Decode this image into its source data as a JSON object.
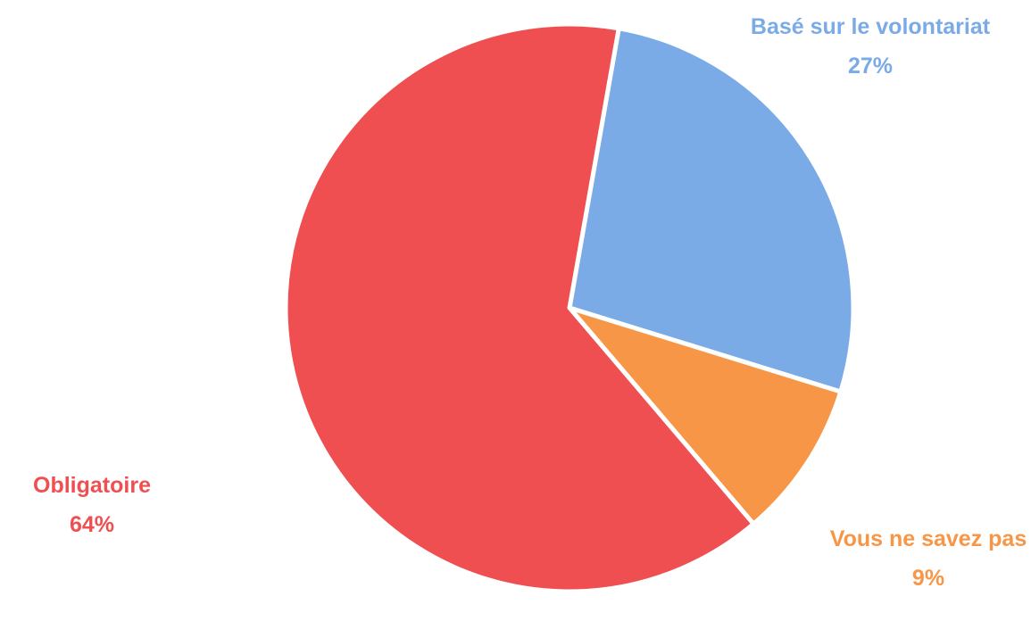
{
  "chart_data": {
    "type": "pie",
    "categories": [
      "Basé sur le volontariat",
      "Vous ne savez pas",
      "Obligatoire"
    ],
    "values": [
      27,
      9,
      64
    ],
    "value_labels": [
      "27%",
      "9%",
      "64%"
    ],
    "colors": [
      "#7aabe6",
      "#f79646",
      "#f04f51"
    ]
  }
}
